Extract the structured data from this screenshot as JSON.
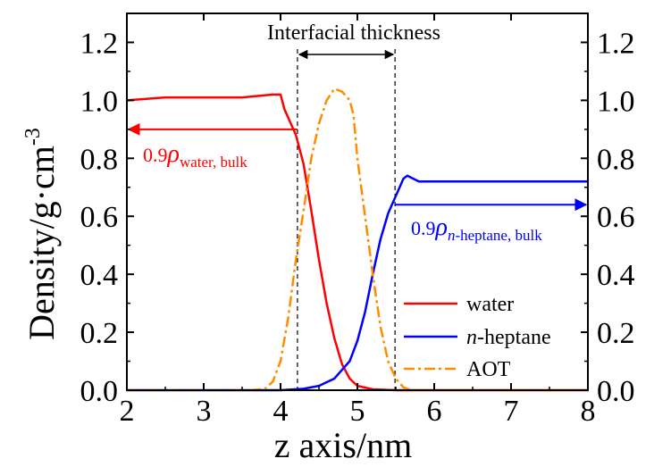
{
  "chart_data": {
    "type": "line",
    "xlabel": "z axis/nm",
    "ylabel": "Density/g·cm",
    "ylabel_sup": "-3",
    "xlim": [
      2,
      8
    ],
    "ylim": [
      0,
      1.3
    ],
    "xticks": [
      2,
      3,
      4,
      5,
      6,
      7,
      8
    ],
    "yticks": [
      0.0,
      0.2,
      0.4,
      0.6,
      0.8,
      1.0,
      1.2
    ],
    "ytick_labels": [
      "0.0",
      "0.2",
      "0.4",
      "0.6",
      "0.8",
      "1.0",
      "1.2"
    ],
    "xtick_labels": [
      "2",
      "3",
      "4",
      "5",
      "6",
      "7",
      "8"
    ],
    "right_axis_mirror": true,
    "grid": false,
    "legend_placement": "bottom-right",
    "series": [
      {
        "name": "water",
        "color": "#ff0000",
        "style": "solid",
        "points": [
          [
            2.0,
            1.0
          ],
          [
            2.5,
            1.01
          ],
          [
            3.0,
            1.01
          ],
          [
            3.5,
            1.01
          ],
          [
            3.9,
            1.02
          ],
          [
            4.0,
            1.02
          ],
          [
            4.05,
            0.97
          ],
          [
            4.1,
            0.94
          ],
          [
            4.2,
            0.88
          ],
          [
            4.3,
            0.78
          ],
          [
            4.4,
            0.62
          ],
          [
            4.5,
            0.45
          ],
          [
            4.6,
            0.3
          ],
          [
            4.7,
            0.18
          ],
          [
            4.8,
            0.09
          ],
          [
            4.9,
            0.04
          ],
          [
            5.0,
            0.015
          ],
          [
            5.2,
            0.003
          ],
          [
            5.5,
            0.0
          ],
          [
            6.0,
            0.0
          ],
          [
            7.0,
            0.0
          ],
          [
            8.0,
            0.0
          ]
        ]
      },
      {
        "name": "n-heptane",
        "name_italic": "n",
        "name_rest": "-heptane",
        "color": "#0000ff",
        "style": "solid",
        "points": [
          [
            2.0,
            0.0
          ],
          [
            3.5,
            0.0
          ],
          [
            4.0,
            0.0
          ],
          [
            4.3,
            0.005
          ],
          [
            4.5,
            0.015
          ],
          [
            4.7,
            0.04
          ],
          [
            4.9,
            0.1
          ],
          [
            5.0,
            0.17
          ],
          [
            5.1,
            0.27
          ],
          [
            5.2,
            0.4
          ],
          [
            5.3,
            0.52
          ],
          [
            5.4,
            0.61
          ],
          [
            5.5,
            0.67
          ],
          [
            5.6,
            0.73
          ],
          [
            5.65,
            0.74
          ],
          [
            5.8,
            0.72
          ],
          [
            6.0,
            0.72
          ],
          [
            6.5,
            0.72
          ],
          [
            7.0,
            0.72
          ],
          [
            7.5,
            0.72
          ],
          [
            8.0,
            0.72
          ]
        ]
      },
      {
        "name": "AOT",
        "color": "#ff8c00",
        "style": "dashdot",
        "points": [
          [
            2.0,
            0.0
          ],
          [
            3.6,
            0.0
          ],
          [
            3.8,
            0.005
          ],
          [
            3.9,
            0.03
          ],
          [
            4.0,
            0.1
          ],
          [
            4.1,
            0.25
          ],
          [
            4.2,
            0.45
          ],
          [
            4.3,
            0.62
          ],
          [
            4.4,
            0.8
          ],
          [
            4.5,
            0.92
          ],
          [
            4.6,
            1.0
          ],
          [
            4.7,
            1.04
          ],
          [
            4.8,
            1.03
          ],
          [
            4.9,
            1.0
          ],
          [
            4.95,
            0.95
          ],
          [
            5.0,
            0.8
          ],
          [
            5.1,
            0.6
          ],
          [
            5.2,
            0.4
          ],
          [
            5.3,
            0.22
          ],
          [
            5.4,
            0.1
          ],
          [
            5.5,
            0.04
          ],
          [
            5.6,
            0.01
          ],
          [
            5.7,
            0.0
          ],
          [
            6.0,
            0.0
          ],
          [
            8.0,
            0.0
          ]
        ]
      }
    ],
    "vlines": [
      4.22,
      5.49
    ],
    "interface_label": "Interfacial thickness",
    "annotations": [
      {
        "id": "water",
        "prefix": "0.9",
        "symbol": "ρ",
        "sub": "water, bulk",
        "color": "#ff0000",
        "y": 0.9,
        "x_from": 4.22,
        "x_to": 2.0
      },
      {
        "id": "heptane",
        "prefix": "0.9",
        "symbol": "ρ",
        "sub_italic": "n",
        "sub": "-heptane, bulk",
        "color": "#0000ff",
        "y": 0.64,
        "x_from": 5.49,
        "x_to": 8.0
      }
    ]
  }
}
